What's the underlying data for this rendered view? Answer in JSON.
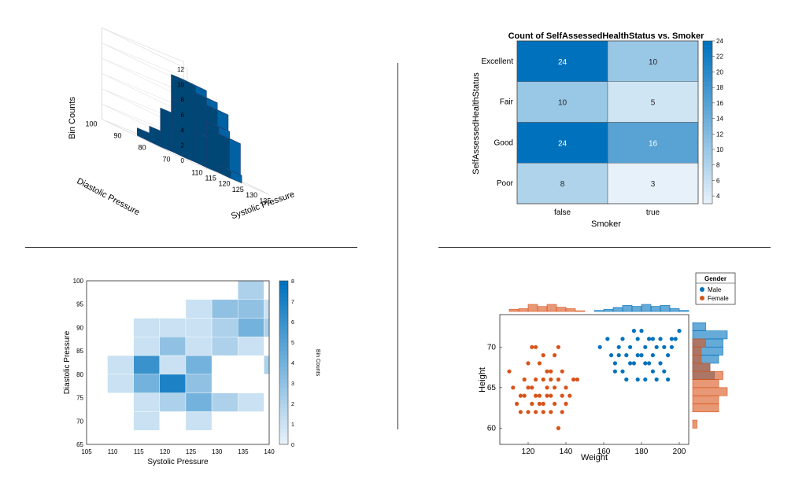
{
  "colors": {
    "blue": "#0072BD",
    "orange": "#D95319",
    "edge": "#1f3f73",
    "axis": "#262626",
    "heat_low": "#E6F1FA",
    "heat_high": "#0072BD"
  },
  "chart_data": [
    {
      "type": "bar3",
      "title": "",
      "xlabel": "Systolic Pressure",
      "ylabel": "Diastolic Pressure",
      "zlabel": "Bin Counts",
      "xticks": [
        "110",
        "115",
        "120",
        "125",
        "130",
        "135"
      ],
      "yticks": [
        "70",
        "80",
        "90",
        "100"
      ],
      "zticks": [
        "0",
        "2",
        "4",
        "6",
        "8",
        "10",
        "12"
      ],
      "xlim": [
        107,
        137
      ],
      "ylim": [
        65,
        100
      ],
      "zlim": [
        0,
        12
      ],
      "bin_width_x": 4,
      "bin_width_y": 5,
      "bars": [
        {
          "x": 111,
          "y": 90,
          "z": 1
        },
        {
          "x": 111,
          "y": 85,
          "z": 2
        },
        {
          "x": 115,
          "y": 85,
          "z": 5
        },
        {
          "x": 115,
          "y": 80,
          "z": 7
        },
        {
          "x": 119,
          "y": 85,
          "z": 10
        },
        {
          "x": 119,
          "y": 80,
          "z": 10
        },
        {
          "x": 119,
          "y": 75,
          "z": 4
        },
        {
          "x": 123,
          "y": 80,
          "z": 9
        },
        {
          "x": 123,
          "y": 75,
          "z": 6
        },
        {
          "x": 123,
          "y": 70,
          "z": 1
        },
        {
          "x": 127,
          "y": 85,
          "z": 6
        },
        {
          "x": 127,
          "y": 80,
          "z": 8
        },
        {
          "x": 127,
          "y": 75,
          "z": 5
        },
        {
          "x": 131,
          "y": 90,
          "z": 2
        },
        {
          "x": 131,
          "y": 85,
          "z": 3
        },
        {
          "x": 131,
          "y": 80,
          "z": 3
        }
      ]
    },
    {
      "type": "heatmap",
      "title": "Count of SelfAssessedHealthStatus vs. Smoker",
      "xlabel": "Smoker",
      "ylabel": "SelfAssessedHealthStatus",
      "x": [
        "false",
        "true"
      ],
      "y": [
        "Excellent",
        "Fair",
        "Good",
        "Poor"
      ],
      "values": [
        [
          24,
          10
        ],
        [
          10,
          5
        ],
        [
          24,
          16
        ],
        [
          8,
          3
        ]
      ],
      "colorbar_ticks": [
        "4",
        "6",
        "8",
        "10",
        "12",
        "14",
        "16",
        "18",
        "20",
        "22",
        "24"
      ],
      "clim": [
        3,
        24
      ]
    },
    {
      "type": "heatmap",
      "title": "",
      "xlabel": "Systolic Pressure",
      "ylabel": "Diastolic Pressure",
      "colorbar_label": "Bin Counts",
      "xticks": [
        "105",
        "110",
        "115",
        "120",
        "125",
        "130",
        "135",
        "140"
      ],
      "yticks": [
        "65",
        "70",
        "75",
        "80",
        "85",
        "90",
        "95",
        "100"
      ],
      "colorbar_ticks": [
        "0",
        "1",
        "2",
        "3",
        "4",
        "5",
        "6",
        "7",
        "8"
      ],
      "xlim": [
        105,
        140
      ],
      "ylim": [
        65,
        100
      ],
      "clim": [
        0,
        8
      ],
      "bin_width_x": 5,
      "bin_height_y": 4,
      "bins": [
        {
          "x": 109,
          "y": 80,
          "v": 1
        },
        {
          "x": 109,
          "y": 76,
          "v": 1
        },
        {
          "x": 114,
          "y": 88,
          "v": 1
        },
        {
          "x": 114,
          "y": 84,
          "v": 1
        },
        {
          "x": 114,
          "y": 80,
          "v": 6
        },
        {
          "x": 114,
          "y": 76,
          "v": 4
        },
        {
          "x": 114,
          "y": 72,
          "v": 1
        },
        {
          "x": 114,
          "y": 68,
          "v": 1
        },
        {
          "x": 119,
          "y": 88,
          "v": 1
        },
        {
          "x": 119,
          "y": 84,
          "v": 3
        },
        {
          "x": 119,
          "y": 80,
          "v": 1
        },
        {
          "x": 119,
          "y": 76,
          "v": 7
        },
        {
          "x": 119,
          "y": 72,
          "v": 2
        },
        {
          "x": 124,
          "y": 92,
          "v": 1
        },
        {
          "x": 124,
          "y": 88,
          "v": 1
        },
        {
          "x": 124,
          "y": 84,
          "v": 1
        },
        {
          "x": 124,
          "y": 80,
          "v": 4
        },
        {
          "x": 124,
          "y": 76,
          "v": 3
        },
        {
          "x": 124,
          "y": 72,
          "v": 4
        },
        {
          "x": 124,
          "y": 68,
          "v": 1
        },
        {
          "x": 129,
          "y": 92,
          "v": 3
        },
        {
          "x": 129,
          "y": 88,
          "v": 2
        },
        {
          "x": 129,
          "y": 84,
          "v": 2
        },
        {
          "x": 129,
          "y": 72,
          "v": 2
        },
        {
          "x": 134,
          "y": 96,
          "v": 2
        },
        {
          "x": 134,
          "y": 92,
          "v": 3
        },
        {
          "x": 134,
          "y": 88,
          "v": 4
        },
        {
          "x": 134,
          "y": 84,
          "v": 1
        },
        {
          "x": 134,
          "y": 72,
          "v": 1
        },
        {
          "x": 139,
          "y": 92,
          "v": 1
        },
        {
          "x": 139,
          "y": 88,
          "v": 2
        },
        {
          "x": 139,
          "y": 80,
          "v": 2
        },
        {
          "x": 144,
          "y": 96,
          "v": 1
        },
        {
          "x": 144,
          "y": 92,
          "v": 2
        },
        {
          "x": 144,
          "y": 88,
          "v": 2
        },
        {
          "x": 144,
          "y": 80,
          "v": 2
        }
      ]
    },
    {
      "type": "scatter",
      "title": "",
      "xlabel": "Weight",
      "ylabel": "Height",
      "xticks": [
        "120",
        "140",
        "160",
        "180",
        "200"
      ],
      "yticks": [
        "60",
        "65",
        "70"
      ],
      "xlim": [
        105,
        205
      ],
      "ylim": [
        58,
        74
      ],
      "legend": {
        "title": "Gender",
        "position": "top-right-outside"
      },
      "marginal_histograms": true,
      "series": [
        {
          "name": "Male",
          "color": "#0072BD",
          "points": [
            [
              158,
              70
            ],
            [
              162,
              71
            ],
            [
              164,
              69
            ],
            [
              166,
              68
            ],
            [
              168,
              70
            ],
            [
              170,
              71
            ],
            [
              172,
              69
            ],
            [
              174,
              70
            ],
            [
              176,
              72
            ],
            [
              178,
              71
            ],
            [
              180,
              72
            ],
            [
              182,
              70
            ],
            [
              184,
              71
            ],
            [
              186,
              69
            ],
            [
              188,
              70
            ],
            [
              190,
              71
            ],
            [
              192,
              70
            ],
            [
              194,
              69
            ],
            [
              196,
              70
            ],
            [
              198,
              71
            ],
            [
              200,
              72
            ],
            [
              166,
              67
            ],
            [
              170,
              67
            ],
            [
              174,
              68
            ],
            [
              178,
              66
            ],
            [
              182,
              68
            ],
            [
              186,
              67
            ],
            [
              190,
              68
            ],
            [
              194,
              66
            ],
            [
              180,
              69
            ],
            [
              184,
              68
            ],
            [
              172,
              66
            ],
            [
              176,
              68
            ],
            [
              188,
              66
            ],
            [
              192,
              67
            ],
            [
              168,
              69
            ],
            [
              182,
              66
            ],
            [
              186,
              71
            ],
            [
              178,
              69
            ],
            [
              196,
              71
            ]
          ]
        },
        {
          "name": "Female",
          "color": "#D95319",
          "points": [
            [
              110,
              67
            ],
            [
              112,
              65
            ],
            [
              114,
              63
            ],
            [
              116,
              64
            ],
            [
              118,
              66
            ],
            [
              120,
              68
            ],
            [
              122,
              70
            ],
            [
              124,
              70
            ],
            [
              126,
              68
            ],
            [
              128,
              66
            ],
            [
              130,
              65
            ],
            [
              132,
              64
            ],
            [
              134,
              63
            ],
            [
              136,
              66
            ],
            [
              138,
              67
            ],
            [
              140,
              65
            ],
            [
              142,
              64
            ],
            [
              144,
              66
            ],
            [
              146,
              66
            ],
            [
              118,
              64
            ],
            [
              120,
              62
            ],
            [
              122,
              63
            ],
            [
              124,
              64
            ],
            [
              126,
              63
            ],
            [
              128,
              62
            ],
            [
              130,
              64
            ],
            [
              132,
              67
            ],
            [
              134,
              69
            ],
            [
              136,
              70
            ],
            [
              138,
              64
            ],
            [
              120,
              65
            ],
            [
              124,
              66
            ],
            [
              128,
              69
            ],
            [
              132,
              62
            ],
            [
              136,
              60
            ],
            [
              126,
              64
            ],
            [
              130,
              67
            ],
            [
              134,
              65
            ],
            [
              116,
              62
            ],
            [
              140,
              63
            ],
            [
              122,
              65
            ],
            [
              128,
              63
            ],
            [
              132,
              66
            ],
            [
              124,
              62
            ],
            [
              138,
              62
            ]
          ]
        }
      ]
    }
  ]
}
